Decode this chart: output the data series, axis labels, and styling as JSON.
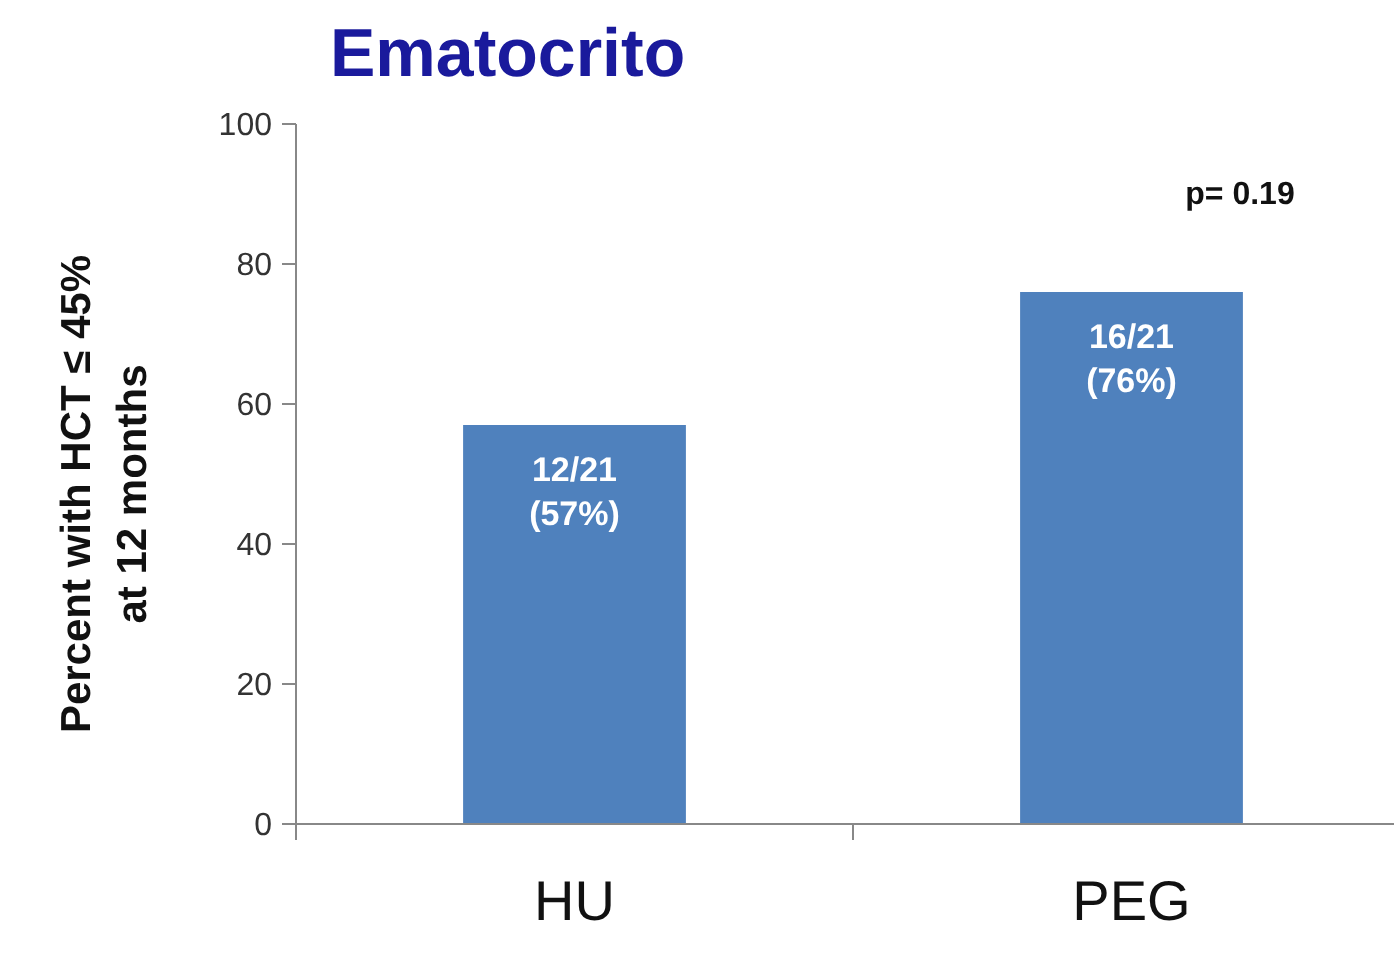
{
  "chart_data": {
    "type": "bar",
    "title": "Ematocrito",
    "ylabel": "Percent with HCT ≤ 45%\nat 12 months",
    "categories": [
      "HU",
      "PEG"
    ],
    "values": [
      57,
      76
    ],
    "color": "#4f81bd",
    "value_labels": [
      "12/21\n(57%)",
      "16/21\n(76%)"
    ],
    "ylim": [
      0,
      100
    ],
    "yticks": [
      0,
      20,
      40,
      60,
      80,
      100
    ],
    "grid": false,
    "annotations": [
      "p= 0.19"
    ]
  }
}
